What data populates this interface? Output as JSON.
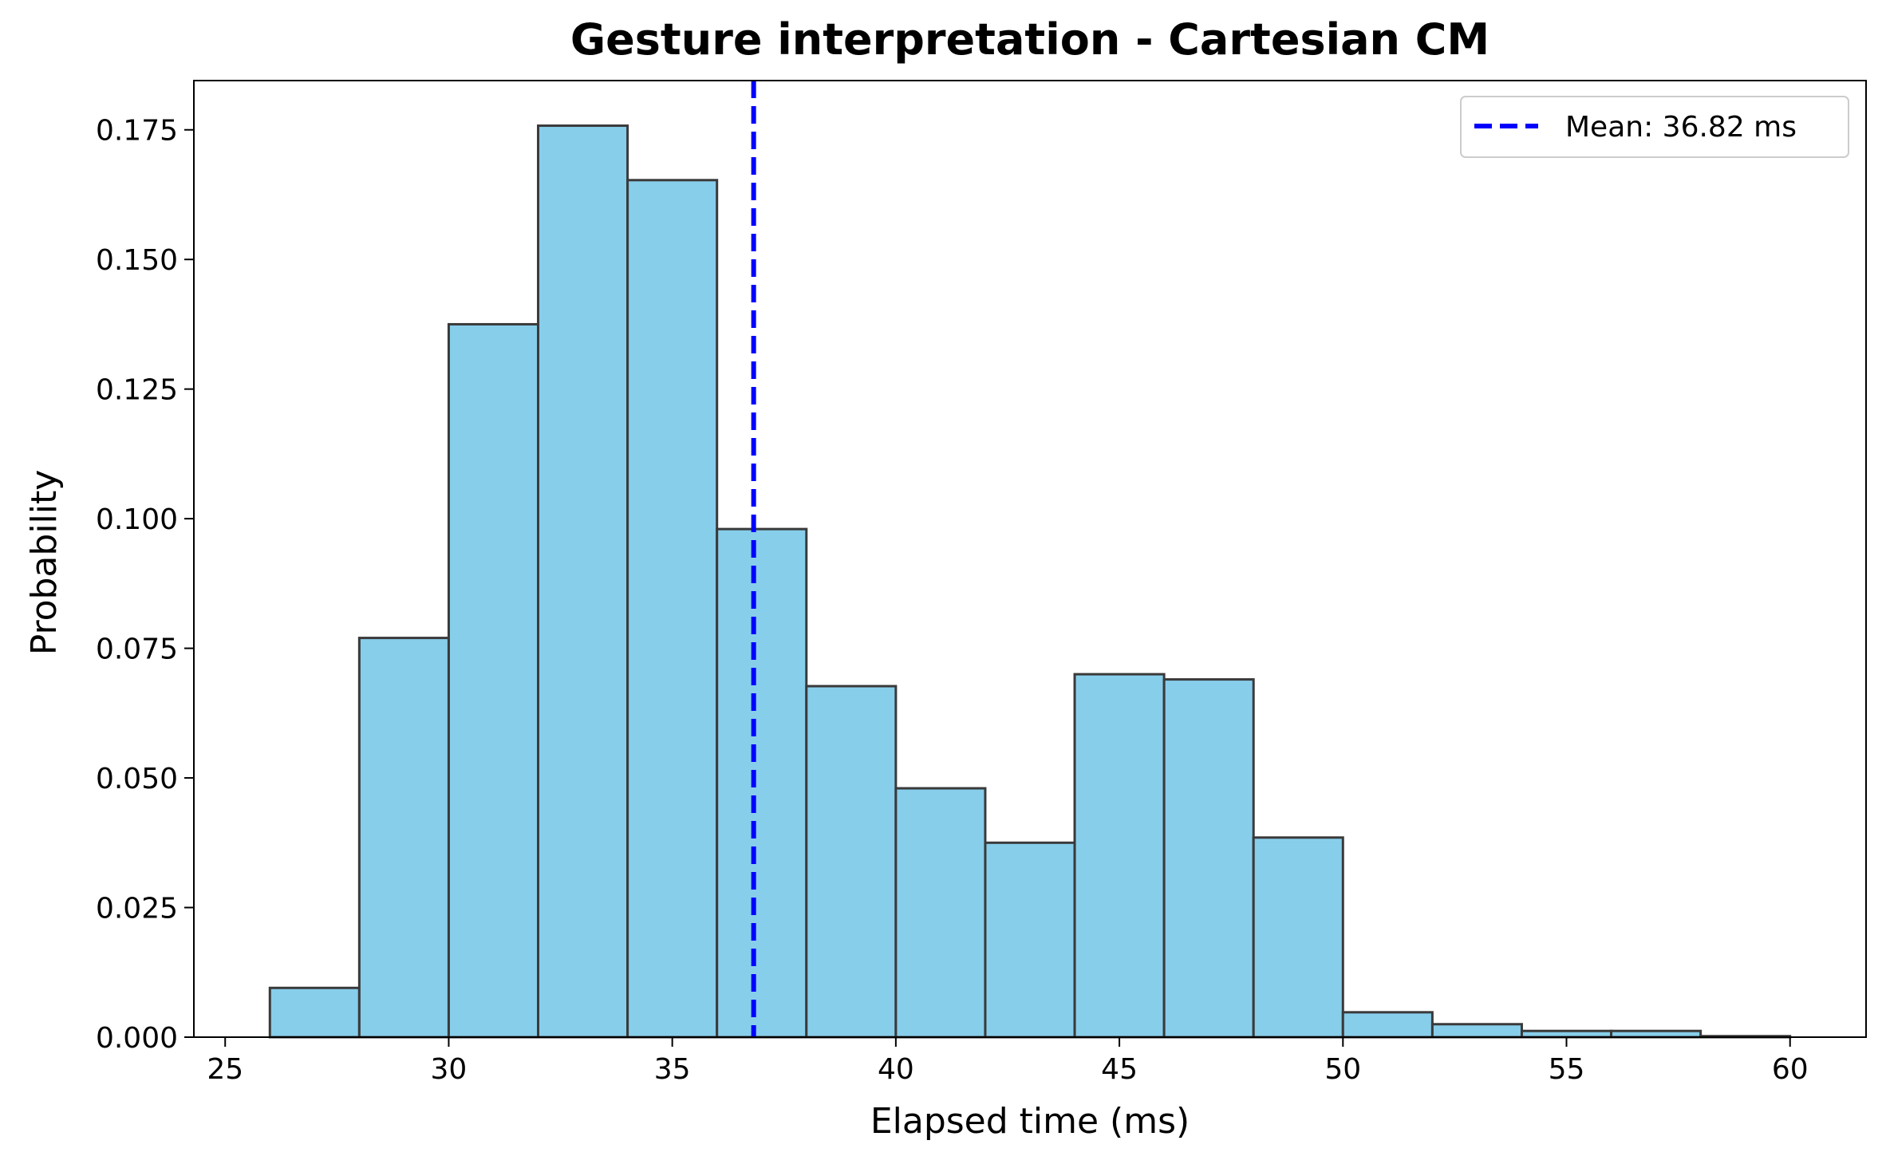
{
  "chart_data": {
    "type": "bar",
    "title": "Gesture interpretation - Cartesian CM",
    "xlabel": "Elapsed time (ms)",
    "ylabel": "Probability",
    "xlim": [
      24.3,
      61.7
    ],
    "ylim": [
      0,
      0.1845
    ],
    "xticks": [
      25,
      30,
      35,
      40,
      45,
      50,
      55,
      60
    ],
    "xtick_labels": [
      "25",
      "30",
      "35",
      "40",
      "45",
      "50",
      "55",
      "60"
    ],
    "yticks": [
      0,
      0.025,
      0.05,
      0.075,
      0.1,
      0.125,
      0.15,
      0.175
    ],
    "ytick_labels": [
      "0.000",
      "0.025",
      "0.050",
      "0.075",
      "0.100",
      "0.125",
      "0.150",
      "0.175"
    ],
    "bins": [
      {
        "start": 26,
        "end": 28,
        "value": 0.0095
      },
      {
        "start": 28,
        "end": 30,
        "value": 0.077
      },
      {
        "start": 30,
        "end": 32,
        "value": 0.1375
      },
      {
        "start": 32,
        "end": 34,
        "value": 0.1758
      },
      {
        "start": 34,
        "end": 36,
        "value": 0.1653
      },
      {
        "start": 36,
        "end": 38,
        "value": 0.098
      },
      {
        "start": 38,
        "end": 40,
        "value": 0.0677
      },
      {
        "start": 40,
        "end": 42,
        "value": 0.048
      },
      {
        "start": 42,
        "end": 44,
        "value": 0.0375
      },
      {
        "start": 44,
        "end": 46,
        "value": 0.07
      },
      {
        "start": 46,
        "end": 48,
        "value": 0.069
      },
      {
        "start": 48,
        "end": 50,
        "value": 0.0385
      },
      {
        "start": 50,
        "end": 52,
        "value": 0.0048
      },
      {
        "start": 52,
        "end": 54,
        "value": 0.0025
      },
      {
        "start": 54,
        "end": 56,
        "value": 0.0012
      },
      {
        "start": 56,
        "end": 58,
        "value": 0.0012
      },
      {
        "start": 58,
        "end": 60,
        "value": 0.0002
      }
    ],
    "mean": 36.82,
    "legend": {
      "label": "Mean: 36.82 ms",
      "position": "top-right"
    },
    "colors": {
      "bar_fill": "#87CEEB",
      "bar_edge": "#3a3a3a",
      "mean_line": "#0000ff"
    },
    "grid": false
  }
}
